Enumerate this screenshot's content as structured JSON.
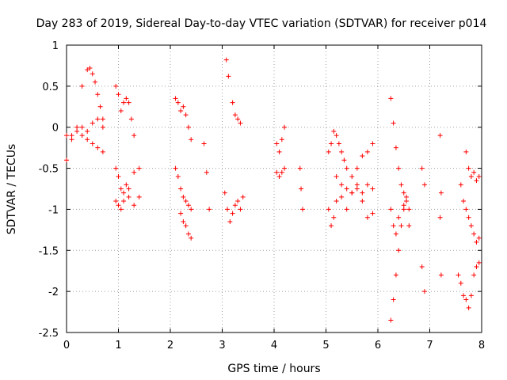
{
  "chart_data": {
    "type": "scatter",
    "title": "Day 283 of 2019, Sidereal Day-to-day VTEC variation (SDTVAR) for receiver p014",
    "xlabel": "GPS time / hours",
    "ylabel": "SDTVAR / TECUs",
    "xlim": [
      0,
      8
    ],
    "ylim": [
      -2.5,
      1
    ],
    "x_ticks": [
      0,
      1,
      2,
      3,
      4,
      5,
      6,
      7,
      8
    ],
    "x_tick_labels": [
      "0",
      "1",
      "2",
      "3",
      "4",
      "5",
      "6",
      "7",
      "8"
    ],
    "y_ticks": [
      1,
      0.5,
      0,
      -0.5,
      -1,
      -1.5,
      -2,
      -2.5
    ],
    "y_tick_labels": [
      "1",
      "0.5",
      "0",
      "-0.5",
      "-1",
      "-1.5",
      "-2",
      "-2.5"
    ],
    "grid": true,
    "marker": "+",
    "color": "#ff0000",
    "series": [
      {
        "name": "SDTVAR",
        "segments": [
          {
            "x": [
              0.0,
              0.1,
              0.2,
              0.3,
              0.4,
              0.45,
              0.5,
              0.55,
              0.6,
              0.65,
              0.7
            ],
            "y": [
              -0.1,
              -0.1,
              0.0,
              0.5,
              0.7,
              0.72,
              0.65,
              0.55,
              0.4,
              0.25,
              0.1
            ]
          },
          {
            "x": [
              0.0,
              0.1,
              0.2,
              0.3,
              0.4,
              0.5,
              0.6,
              0.7
            ],
            "y": [
              -0.4,
              -0.15,
              -0.05,
              0.0,
              -0.05,
              0.05,
              0.1,
              0.0
            ]
          },
          {
            "x": [
              0.3,
              0.4,
              0.5,
              0.6,
              0.7
            ],
            "y": [
              -0.1,
              -0.15,
              -0.2,
              -0.25,
              -0.3
            ]
          },
          {
            "x": [
              0.95,
              1.0,
              1.05,
              1.1,
              1.15,
              1.2,
              1.25,
              1.3
            ],
            "y": [
              0.5,
              0.4,
              0.2,
              0.3,
              0.35,
              0.3,
              0.1,
              -0.1
            ]
          },
          {
            "x": [
              0.95,
              1.0,
              1.05,
              1.1,
              1.15,
              1.2,
              1.3,
              1.4
            ],
            "y": [
              -0.5,
              -0.6,
              -0.75,
              -0.8,
              -0.7,
              -0.75,
              -0.55,
              -0.5
            ]
          },
          {
            "x": [
              0.95,
              1.0,
              1.05,
              1.1,
              1.2,
              1.3,
              1.4
            ],
            "y": [
              -0.9,
              -0.95,
              -1.0,
              -0.9,
              -0.85,
              -0.95,
              -0.85
            ]
          },
          {
            "x": [
              2.1,
              2.15,
              2.2,
              2.25,
              2.3,
              2.35,
              2.4
            ],
            "y": [
              0.35,
              0.3,
              0.2,
              0.25,
              0.15,
              0.0,
              -0.15
            ]
          },
          {
            "x": [
              2.1,
              2.15,
              2.2,
              2.25,
              2.3,
              2.35,
              2.4
            ],
            "y": [
              -0.5,
              -0.6,
              -0.75,
              -0.85,
              -0.9,
              -0.95,
              -1.0
            ]
          },
          {
            "x": [
              2.2,
              2.25,
              2.3,
              2.35,
              2.4
            ],
            "y": [
              -1.05,
              -1.15,
              -1.2,
              -1.3,
              -1.35
            ]
          },
          {
            "x": [
              2.65,
              2.7,
              2.75
            ],
            "y": [
              -0.2,
              -0.55,
              -1.0
            ]
          },
          {
            "x": [
              3.05,
              3.1,
              3.15,
              3.2,
              3.25,
              3.3,
              3.35,
              3.4
            ],
            "y": [
              -0.8,
              -1.0,
              -1.15,
              -1.05,
              -0.95,
              -0.9,
              -1.0,
              -0.85
            ]
          },
          {
            "x": [
              3.08,
              3.12,
              3.2,
              3.25,
              3.3,
              3.35
            ],
            "y": [
              0.82,
              0.62,
              0.3,
              0.15,
              0.1,
              0.05
            ]
          },
          {
            "x": [
              4.05,
              4.1,
              4.15,
              4.2
            ],
            "y": [
              -0.2,
              -0.3,
              -0.15,
              0.0
            ]
          },
          {
            "x": [
              4.05,
              4.1,
              4.15,
              4.2
            ],
            "y": [
              -0.55,
              -0.6,
              -0.55,
              -0.5
            ]
          },
          {
            "x": [
              4.5,
              4.52,
              4.55
            ],
            "y": [
              -0.5,
              -0.75,
              -1.0
            ]
          },
          {
            "x": [
              5.05,
              5.1,
              5.15,
              5.2,
              5.25,
              5.3,
              5.35,
              5.4,
              5.5,
              5.6,
              5.7,
              5.8,
              5.9
            ],
            "y": [
              -0.3,
              -0.2,
              -0.05,
              -0.1,
              -0.2,
              -0.3,
              -0.4,
              -0.5,
              -0.6,
              -0.5,
              -0.35,
              -0.3,
              -0.2
            ]
          },
          {
            "x": [
              5.05,
              5.1,
              5.15,
              5.2,
              5.3,
              5.4,
              5.5,
              5.6,
              5.7,
              5.8,
              5.9
            ],
            "y": [
              -1.0,
              -1.2,
              -1.1,
              -0.9,
              -0.85,
              -1.0,
              -0.8,
              -0.7,
              -0.9,
              -1.1,
              -1.05
            ]
          },
          {
            "x": [
              5.2,
              5.3,
              5.4,
              5.5,
              5.6,
              5.7,
              5.8,
              5.9
            ],
            "y": [
              -0.6,
              -0.7,
              -0.75,
              -0.8,
              -0.75,
              -0.8,
              -0.7,
              -0.75
            ]
          },
          {
            "x": [
              6.25,
              6.3,
              6.35,
              6.4,
              6.45,
              6.5,
              6.55,
              6.6
            ],
            "y": [
              0.35,
              0.05,
              -0.25,
              -0.5,
              -0.7,
              -0.8,
              -0.9,
              -1.0
            ]
          },
          {
            "x": [
              6.25,
              6.3,
              6.35,
              6.4,
              6.45,
              6.5,
              6.55
            ],
            "y": [
              -2.35,
              -2.1,
              -1.8,
              -1.5,
              -1.2,
              -0.95,
              -0.85
            ]
          },
          {
            "x": [
              6.25,
              6.3,
              6.35,
              6.4,
              6.5,
              6.6
            ],
            "y": [
              -1.0,
              -1.2,
              -1.3,
              -1.1,
              -1.0,
              -1.2
            ]
          },
          {
            "x": [
              6.85,
              6.9
            ],
            "y": [
              -0.5,
              -0.7
            ]
          },
          {
            "x": [
              6.85,
              6.9
            ],
            "y": [
              -1.7,
              -2.0
            ]
          },
          {
            "x": [
              7.2,
              7.22
            ],
            "y": [
              -0.1,
              -0.8
            ]
          },
          {
            "x": [
              7.2,
              7.22
            ],
            "y": [
              -1.1,
              -1.8
            ]
          },
          {
            "x": [
              7.55,
              7.6,
              7.65,
              7.7,
              7.75,
              7.8,
              7.85,
              7.9,
              7.95
            ],
            "y": [
              -1.8,
              -1.9,
              -2.05,
              -2.1,
              -2.2,
              -2.05,
              -1.8,
              -1.7,
              -1.65
            ]
          },
          {
            "x": [
              7.6,
              7.65,
              7.7,
              7.75,
              7.8,
              7.85,
              7.9,
              7.95
            ],
            "y": [
              -0.7,
              -0.9,
              -1.0,
              -1.1,
              -1.2,
              -1.3,
              -1.4,
              -1.35
            ]
          },
          {
            "x": [
              7.7,
              7.75,
              7.8,
              7.85,
              7.9,
              7.95
            ],
            "y": [
              -0.3,
              -0.5,
              -0.6,
              -0.55,
              -0.65,
              -0.6
            ]
          }
        ]
      }
    ]
  }
}
